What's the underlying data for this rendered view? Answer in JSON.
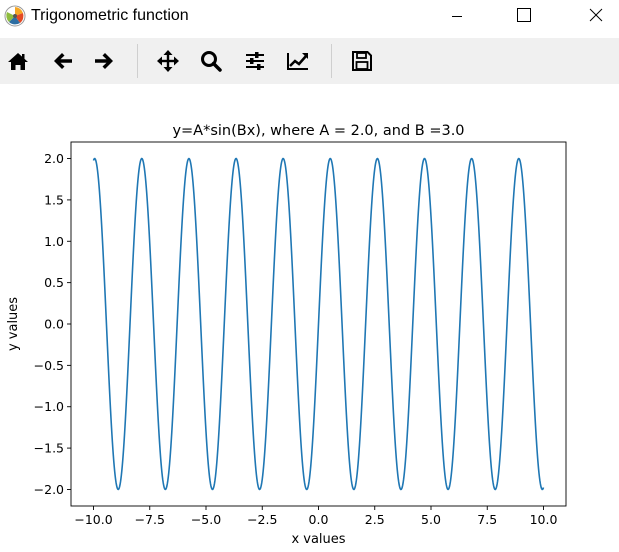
{
  "window": {
    "title": "Trigonometric function",
    "controls": [
      "minimize",
      "maximize",
      "close"
    ]
  },
  "toolbar": {
    "buttons": [
      {
        "id": "home",
        "icon": "home-icon"
      },
      {
        "id": "back",
        "icon": "arrow-left-icon"
      },
      {
        "id": "forward",
        "icon": "arrow-right-icon"
      },
      {
        "id": "pan",
        "icon": "move-arrows-icon"
      },
      {
        "id": "zoom",
        "icon": "magnifier-icon"
      },
      {
        "id": "subplots",
        "icon": "sliders-icon"
      },
      {
        "id": "edit-axes",
        "icon": "line-chart-icon"
      },
      {
        "id": "save",
        "icon": "floppy-disk-icon"
      }
    ]
  },
  "chart_data": {
    "type": "line",
    "title": "y=A*sin(Bx), where A = 2.0, and B =3.0",
    "xlabel": "x values",
    "ylabel": "y values",
    "function": {
      "A": 2.0,
      "B": 3.0
    },
    "x_range": [
      -10,
      10
    ],
    "xlim": [
      -11,
      11
    ],
    "ylim": [
      -2.2,
      2.2
    ],
    "xticks": [
      "−10.0",
      "−7.5",
      "−5.0",
      "−2.5",
      "0.0",
      "2.5",
      "5.0",
      "7.5",
      "10.0"
    ],
    "xtick_values": [
      -10,
      -7.5,
      -5,
      -2.5,
      0,
      2.5,
      5,
      7.5,
      10
    ],
    "yticks": [
      "−2.0",
      "−1.5",
      "−1.0",
      "−0.5",
      "0.0",
      "0.5",
      "1.0",
      "1.5",
      "2.0"
    ],
    "ytick_values": [
      -2,
      -1.5,
      -1,
      -0.5,
      0,
      0.5,
      1,
      1.5,
      2
    ],
    "series": [
      {
        "color": "#1f77b4"
      }
    ],
    "grid": false
  }
}
